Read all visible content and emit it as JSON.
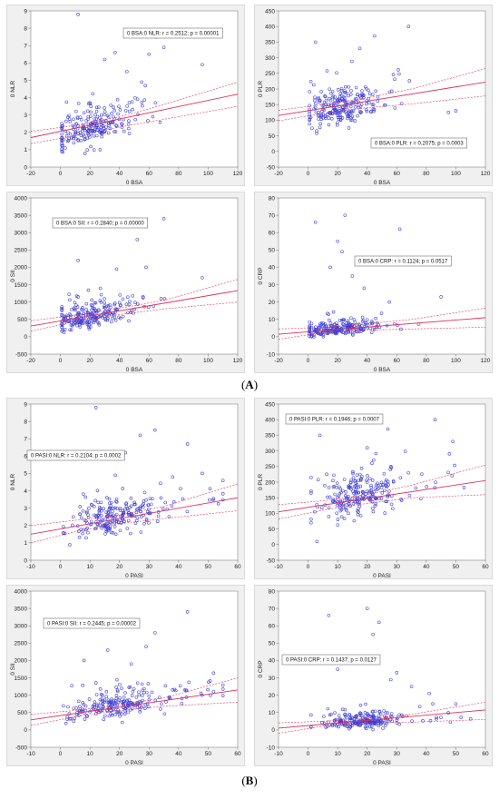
{
  "sections": [
    {
      "label_open": "(",
      "label_letter": "A",
      "label_close": ")"
    },
    {
      "label_open": "(",
      "label_letter": "B",
      "label_close": ")"
    }
  ],
  "colors": {
    "points": "#3b3bd6",
    "fit": "#e0305a",
    "ci": "#e0305a",
    "panel_bg": "#f0f0f0"
  },
  "chart_data": [
    {
      "type": "scatter",
      "id": "A1",
      "xlabel": "0 BSA",
      "ylabel": "0 NLR",
      "annotation": "0 BSA:0 NLR:  r = 0.2512; p = 0.00001",
      "xlim": [
        -20,
        120
      ],
      "ylim": [
        0,
        9
      ],
      "xticks": [
        -20,
        0,
        20,
        40,
        60,
        80,
        100,
        120
      ],
      "yticks": [
        0,
        1,
        2,
        3,
        4,
        5,
        6,
        7,
        8,
        9
      ],
      "fit": {
        "x": [
          -20,
          120
        ],
        "y": [
          1.7,
          4.2
        ]
      },
      "ci_upper": {
        "x": [
          -20,
          10,
          40,
          70,
          120
        ],
        "y": [
          2.05,
          2.4,
          2.9,
          3.6,
          4.9
        ]
      },
      "ci_lower": {
        "x": [
          -20,
          10,
          40,
          70,
          120
        ],
        "y": [
          1.35,
          1.8,
          2.3,
          2.75,
          3.5
        ]
      },
      "points": {
        "n": 220,
        "x_center": 20,
        "x_spread": 12,
        "x_min": 1,
        "x_max": 100,
        "y_base": 1.7,
        "y_slope": 0.022,
        "y_spread": 0.9,
        "y_min": 0.5,
        "y_max": 9,
        "extra_x": [
          12,
          65,
          96,
          60,
          70,
          45,
          55,
          30,
          37
        ],
        "extra_y": [
          8.8,
          7.5,
          5.9,
          6.5,
          6.9,
          5.5,
          4.9,
          6.2,
          6.6
        ]
      }
    },
    {
      "type": "scatter",
      "id": "A2",
      "xlabel": "0 BSA",
      "ylabel": "0 PLR",
      "annotation": "0 BSA:0 PLR:  r = 0.2075; p = 0.0003",
      "xlim": [
        -20,
        120
      ],
      "ylim": [
        -50,
        450
      ],
      "xticks": [
        -20,
        0,
        20,
        40,
        60,
        80,
        100,
        120
      ],
      "yticks": [
        -50,
        0,
        50,
        100,
        150,
        200,
        250,
        300,
        350,
        400,
        450
      ],
      "fit": {
        "x": [
          -20,
          120
        ],
        "y": [
          115,
          222
        ]
      },
      "ci_upper": {
        "x": [
          -20,
          10,
          40,
          70,
          120
        ],
        "y": [
          132,
          150,
          172,
          200,
          265
        ]
      },
      "ci_lower": {
        "x": [
          -20,
          10,
          40,
          70,
          120
        ],
        "y": [
          98,
          122,
          140,
          152,
          178
        ]
      },
      "points": {
        "n": 230,
        "x_center": 20,
        "x_spread": 12,
        "x_min": 1,
        "x_max": 100,
        "y_base": 120,
        "y_slope": 0.9,
        "y_spread": 55,
        "y_min": 20,
        "y_max": 440,
        "extra_x": [
          68,
          45,
          35,
          5,
          95,
          100
        ],
        "extra_y": [
          400,
          370,
          330,
          350,
          125,
          130
        ]
      }
    },
    {
      "type": "scatter",
      "id": "A3",
      "xlabel": "0 BSA",
      "ylabel": "0 SII",
      "annotation": "0 BSA:0 SII:  r = 0.2840; p = 0.00000",
      "xlim": [
        -20,
        120
      ],
      "ylim": [
        -500,
        4000
      ],
      "xticks": [
        -20,
        0,
        20,
        40,
        60,
        80,
        100,
        120
      ],
      "yticks": [
        -500,
        0,
        500,
        1000,
        1500,
        2000,
        2500,
        3000,
        3500,
        4000
      ],
      "fit": {
        "x": [
          -20,
          120
        ],
        "y": [
          310,
          1330
        ]
      },
      "ci_upper": {
        "x": [
          -20,
          10,
          40,
          70,
          120
        ],
        "y": [
          460,
          620,
          820,
          1050,
          1650
        ]
      },
      "ci_lower": {
        "x": [
          -20,
          10,
          40,
          70,
          120
        ],
        "y": [
          160,
          440,
          640,
          800,
          1000
        ]
      },
      "points": {
        "n": 230,
        "x_center": 20,
        "x_spread": 12,
        "x_min": 1,
        "x_max": 100,
        "y_base": 400,
        "y_slope": 8,
        "y_spread": 330,
        "y_min": 80,
        "y_max": 3500,
        "extra_x": [
          70,
          52,
          12,
          38,
          96,
          58
        ],
        "extra_y": [
          3400,
          2800,
          2200,
          1950,
          1700,
          2000
        ]
      }
    },
    {
      "type": "scatter",
      "id": "A4",
      "xlabel": "0 BSA",
      "ylabel": "0 CRP",
      "annotation": "0 BSA:0 CRP:  r = 0.1124; p = 0.0517",
      "xlim": [
        -20,
        120
      ],
      "ylim": [
        -10,
        80
      ],
      "xticks": [
        -20,
        0,
        20,
        40,
        60,
        80,
        100,
        120
      ],
      "yticks": [
        -10,
        0,
        10,
        20,
        30,
        40,
        50,
        60,
        70,
        80
      ],
      "fit": {
        "x": [
          -20,
          120
        ],
        "y": [
          1.5,
          11
        ]
      },
      "ci_upper": {
        "x": [
          -20,
          10,
          40,
          70,
          120
        ],
        "y": [
          4.5,
          5.5,
          7.5,
          10,
          16.5
        ]
      },
      "ci_lower": {
        "x": [
          -20,
          10,
          40,
          70,
          120
        ],
        "y": [
          -1.5,
          2.5,
          3.8,
          4.5,
          5.5
        ]
      },
      "points": {
        "n": 220,
        "x_center": 20,
        "x_spread": 12,
        "x_min": 1,
        "x_max": 100,
        "y_base": 3,
        "y_slope": 0.05,
        "y_spread": 3.5,
        "y_min": 0,
        "y_max": 75,
        "extra_x": [
          5,
          25,
          20,
          23,
          62,
          15,
          30,
          90,
          38,
          55
        ],
        "extra_y": [
          66,
          70,
          55,
          49,
          62,
          40,
          35,
          23,
          28,
          20
        ]
      }
    },
    {
      "type": "scatter",
      "id": "B1",
      "xlabel": "0 PASI",
      "ylabel": "0 NLR",
      "annotation": "0 PASI:0 NLR:  r = 0.2104; p = 0.0002",
      "xlim": [
        -10,
        60
      ],
      "ylim": [
        0,
        9
      ],
      "xticks": [
        -10,
        0,
        10,
        20,
        30,
        40,
        50,
        60
      ],
      "yticks": [
        0,
        1,
        2,
        3,
        4,
        5,
        6,
        7,
        8,
        9
      ],
      "fit": {
        "x": [
          -10,
          60
        ],
        "y": [
          1.5,
          3.6
        ]
      },
      "ci_upper": {
        "x": [
          -10,
          5,
          20,
          35,
          60
        ],
        "y": [
          2.0,
          2.3,
          2.6,
          3.1,
          4.4
        ]
      },
      "ci_lower": {
        "x": [
          -10,
          5,
          20,
          35,
          60
        ],
        "y": [
          1.0,
          1.65,
          2.1,
          2.4,
          2.85
        ]
      },
      "points": {
        "n": 230,
        "x_center": 18,
        "x_spread": 7,
        "x_min": 1,
        "x_max": 55,
        "y_base": 1.6,
        "y_slope": 0.04,
        "y_spread": 0.9,
        "y_min": 0.5,
        "y_max": 9,
        "extra_x": [
          12,
          32,
          43,
          27,
          22,
          38,
          48,
          55
        ],
        "extra_y": [
          8.8,
          7.5,
          6.7,
          7.2,
          6.2,
          4.8,
          5.0,
          4.6
        ]
      }
    },
    {
      "type": "scatter",
      "id": "B2",
      "xlabel": "0 PASI",
      "ylabel": "0 PLR",
      "annotation": "0 PASI:0 PLR:  r = 0.1946; p = 0.0007",
      "xlim": [
        -10,
        60
      ],
      "ylim": [
        -50,
        450
      ],
      "xticks": [
        -10,
        0,
        10,
        20,
        30,
        40,
        50,
        60
      ],
      "yticks": [
        -50,
        0,
        50,
        100,
        150,
        200,
        250,
        300,
        350,
        400,
        450
      ],
      "fit": {
        "x": [
          -10,
          60
        ],
        "y": [
          105,
          205
        ]
      },
      "ci_upper": {
        "x": [
          -10,
          5,
          20,
          35,
          60
        ],
        "y": [
          128,
          140,
          160,
          190,
          255
        ]
      },
      "ci_lower": {
        "x": [
          -10,
          5,
          20,
          35,
          60
        ],
        "y": [
          82,
          110,
          132,
          150,
          160
        ]
      },
      "points": {
        "n": 230,
        "x_center": 17,
        "x_spread": 7,
        "x_min": 1,
        "x_max": 55,
        "y_base": 120,
        "y_slope": 1.6,
        "y_spread": 55,
        "y_min": 20,
        "y_max": 440,
        "extra_x": [
          43,
          4,
          49,
          20,
          27,
          28,
          3
        ],
        "extra_y": [
          400,
          350,
          330,
          310,
          370,
          250,
          10
        ]
      }
    },
    {
      "type": "scatter",
      "id": "B3",
      "xlabel": "0 PASI",
      "ylabel": "0 SII",
      "annotation": "0 PASI:0 SII:  r = 0.2445; p = 0.00002",
      "xlim": [
        -10,
        60
      ],
      "ylim": [
        -500,
        4000
      ],
      "xticks": [
        -10,
        0,
        10,
        20,
        30,
        40,
        50,
        60
      ],
      "yticks": [
        -500,
        0,
        500,
        1000,
        1500,
        2000,
        2500,
        3000,
        3500,
        4000
      ],
      "fit": {
        "x": [
          -10,
          60
        ],
        "y": [
          290,
          1150
        ]
      },
      "ci_upper": {
        "x": [
          -10,
          5,
          20,
          35,
          60
        ],
        "y": [
          450,
          560,
          720,
          920,
          1500
        ]
      },
      "ci_lower": {
        "x": [
          -10,
          5,
          20,
          35,
          60
        ],
        "y": [
          130,
          380,
          560,
          680,
          800
        ]
      },
      "points": {
        "n": 230,
        "x_center": 18,
        "x_spread": 7,
        "x_min": 1,
        "x_max": 55,
        "y_base": 400,
        "y_slope": 14,
        "y_spread": 330,
        "y_min": 80,
        "y_max": 3500,
        "extra_x": [
          43,
          32,
          29,
          8,
          16,
          24
        ],
        "extra_y": [
          3400,
          2800,
          2400,
          2000,
          2300,
          1900
        ]
      }
    },
    {
      "type": "scatter",
      "id": "B4",
      "xlabel": "0 PASI",
      "ylabel": "0 CRP",
      "annotation": "0 PASI:0 CRP:  r = 0.1437; p = 0.0127",
      "xlim": [
        -10,
        60
      ],
      "ylim": [
        -10,
        80
      ],
      "xticks": [
        -10,
        0,
        10,
        20,
        30,
        40,
        50,
        60
      ],
      "yticks": [
        -10,
        0,
        10,
        20,
        30,
        40,
        50,
        60,
        70,
        80
      ],
      "fit": {
        "x": [
          -10,
          60
        ],
        "y": [
          1,
          11.5
        ]
      },
      "ci_upper": {
        "x": [
          -10,
          5,
          20,
          35,
          60
        ],
        "y": [
          4,
          5,
          6.5,
          9,
          16
        ]
      },
      "ci_lower": {
        "x": [
          -10,
          5,
          20,
          35,
          60
        ],
        "y": [
          -2,
          2.2,
          3.8,
          4.5,
          6
        ]
      },
      "points": {
        "n": 220,
        "x_center": 17,
        "x_spread": 7,
        "x_min": 1,
        "x_max": 55,
        "y_base": 3,
        "y_slope": 0.08,
        "y_spread": 3.5,
        "y_min": 0,
        "y_max": 75,
        "extra_x": [
          7,
          20,
          24,
          22,
          30,
          10,
          41,
          28,
          35,
          50
        ],
        "extra_y": [
          66,
          70,
          62,
          55,
          33,
          35,
          21,
          29,
          25,
          15
        ]
      }
    }
  ]
}
